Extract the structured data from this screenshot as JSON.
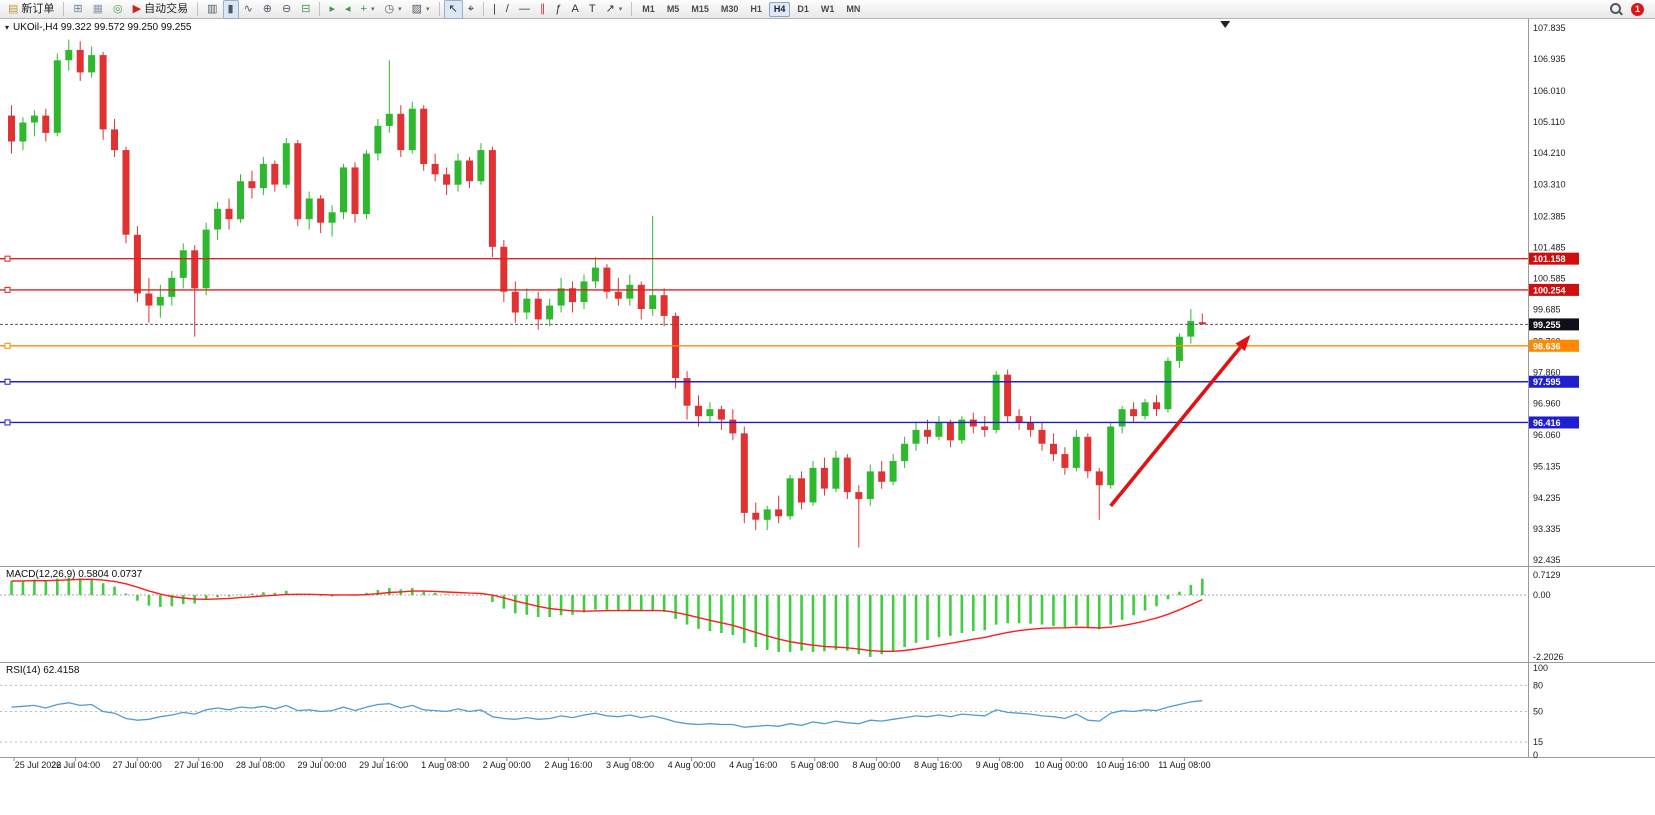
{
  "toolbar": {
    "items": [
      {
        "type": "button",
        "name": "new-order-button",
        "icon": "new-order-icon",
        "glyph": "▤",
        "glyph_color": "#b99a3c",
        "label": "新订单"
      },
      {
        "type": "sep"
      },
      {
        "type": "button",
        "name": "new-chart-button",
        "icon": "new-chart-icon",
        "glyph": "⊞",
        "glyph_color": "#6e7f95"
      },
      {
        "type": "button",
        "name": "profiles-button",
        "icon": "profiles-icon",
        "glyph": "▦",
        "glyph_color": "#8f9bad"
      },
      {
        "type": "button",
        "name": "community-button",
        "icon": "community-icon",
        "glyph": "◎",
        "glyph_color": "#3f9d4a"
      },
      {
        "type": "button",
        "name": "autotrading-button",
        "icon": "autotrading-icon",
        "glyph": "▶",
        "glyph_color": "#cc2222",
        "label": "自动交易"
      },
      {
        "type": "sep"
      },
      {
        "type": "button",
        "name": "bar-chart-button",
        "icon": "bar-chart-icon",
        "glyph": "▥",
        "glyph_color": "#505a66"
      },
      {
        "type": "button",
        "name": "candlestick-button",
        "icon": "candlestick-icon",
        "glyph": "▮",
        "glyph_color": "#505a66",
        "pressed": true
      },
      {
        "type": "button",
        "name": "line-chart-button",
        "icon": "line-chart-icon",
        "glyph": "∿",
        "glyph_color": "#505a66"
      },
      {
        "type": "button",
        "name": "zoom-in-button",
        "icon": "zoom-in-icon",
        "glyph": "⊕",
        "glyph_color": "#505a66"
      },
      {
        "type": "button",
        "name": "zoom-out-button",
        "icon": "zoom-out-icon",
        "glyph": "⊖",
        "glyph_color": "#505a66"
      },
      {
        "type": "button",
        "name": "tile-windows-button",
        "icon": "tile-windows-icon",
        "glyph": "⊟",
        "glyph_color": "#3f9d4a"
      },
      {
        "type": "sep"
      },
      {
        "type": "button",
        "name": "auto-scroll-button",
        "icon": "auto-scroll-icon",
        "glyph": "▸",
        "glyph_color": "#3f9d4a"
      },
      {
        "type": "button",
        "name": "chart-shift-button",
        "icon": "chart-shift-icon",
        "glyph": "◂",
        "glyph_color": "#3f9d4a"
      },
      {
        "type": "button",
        "name": "add-indicator-button",
        "icon": "add-indicator-icon",
        "glyph": "+",
        "glyph_color": "#2c9440",
        "caret": true
      },
      {
        "type": "button",
        "name": "periods-button",
        "icon": "clock-icon",
        "glyph": "◷",
        "glyph_color": "#505a66",
        "caret": true
      },
      {
        "type": "button",
        "name": "templates-button",
        "icon": "template-icon",
        "glyph": "▨",
        "glyph_color": "#505a66",
        "caret": true
      },
      {
        "type": "sep"
      },
      {
        "type": "button",
        "name": "cursor-button",
        "icon": "cursor-icon",
        "glyph": "↖",
        "glyph_color": "#2a3340",
        "pressed": true
      },
      {
        "type": "button",
        "name": "crosshair-button",
        "icon": "crosshair-icon",
        "glyph": "⌖",
        "glyph_color": "#2a3340"
      },
      {
        "type": "sep"
      },
      {
        "type": "button",
        "name": "vertical-line-tool",
        "icon": "vertical-line-icon",
        "glyph": "|",
        "glyph_color": "#2a3340"
      },
      {
        "type": "button",
        "name": "trendline-tool",
        "icon": "trendline-icon",
        "glyph": "/",
        "glyph_color": "#2a3340"
      },
      {
        "type": "button",
        "name": "horizontal-line-tool",
        "icon": "horizontal-line-icon",
        "glyph": "—",
        "glyph_color": "#2a3340"
      },
      {
        "type": "button",
        "name": "channel-tool",
        "icon": "channel-icon",
        "glyph": "∥",
        "glyph_color": "#b34040"
      },
      {
        "type": "button",
        "name": "fibonacci-tool",
        "icon": "fibonacci-icon",
        "glyph": "ƒ",
        "glyph_color": "#2a3340"
      },
      {
        "type": "button",
        "name": "text-tool",
        "icon": "text-icon",
        "glyph": "A",
        "glyph_color": "#2a3340"
      },
      {
        "type": "button",
        "name": "label-tool",
        "icon": "label-icon",
        "glyph": "T",
        "glyph_color": "#2a3340"
      },
      {
        "type": "button",
        "name": "arrows-tool",
        "icon": "arrows-icon",
        "glyph": "↗",
        "glyph_color": "#2a3340",
        "caret": true
      },
      {
        "type": "sep"
      }
    ],
    "timeframes": [
      "M1",
      "M5",
      "M15",
      "M30",
      "H1",
      "H4",
      "D1",
      "W1",
      "MN"
    ],
    "active_timeframe": "H4",
    "notification_badge": "1"
  },
  "colors": {
    "up": "#2eb82e",
    "down": "#e03232",
    "macd_hist": "#3ecf3e",
    "macd_signal": "#ff1e1e",
    "rsi_line": "#4f9bd5",
    "separator": "#9a9a9a",
    "background": "#ffffff"
  },
  "chart_data": [
    {
      "type": "candlestick",
      "title": "UKOil-,H4",
      "header": "UKOil-,H4  99.322 99.572 99.250 99.255",
      "ohlc_display": {
        "open": "99.322",
        "high": "99.572",
        "low": "99.250",
        "close": "99.255"
      },
      "y_ticks": [
        "107.835",
        "106.935",
        "106.010",
        "105.110",
        "104.210",
        "103.310",
        "102.385",
        "101.485",
        "100.585",
        "99.685",
        "98.760",
        "97.860",
        "96.960",
        "96.060",
        "95.135",
        "94.235",
        "93.335",
        "92.435"
      ],
      "x_ticks": [
        "25 Jul 2022",
        "26 Jul 04:00",
        "27 Jul 00:00",
        "27 Jul 16:00",
        "28 Jul 08:00",
        "29 Jul 00:00",
        "29 Jul 16:00",
        "1 Aug 08:00",
        "2 Aug 00:00",
        "2 Aug 16:00",
        "3 Aug 08:00",
        "4 Aug 00:00",
        "4 Aug 16:00",
        "5 Aug 08:00",
        "8 Aug 00:00",
        "8 Aug 16:00",
        "9 Aug 08:00",
        "10 Aug 00:00",
        "10 Aug 16:00",
        "11 Aug 08:00"
      ],
      "ohlc": [
        [
          105.3,
          105.6,
          104.2,
          104.55
        ],
        [
          104.55,
          105.25,
          104.3,
          105.1
        ],
        [
          105.1,
          105.45,
          104.7,
          105.3
        ],
        [
          105.3,
          105.5,
          104.55,
          104.8
        ],
        [
          104.8,
          107.1,
          104.7,
          106.9
        ],
        [
          106.9,
          107.5,
          106.6,
          107.2
        ],
        [
          107.2,
          107.45,
          106.3,
          106.55
        ],
        [
          106.55,
          107.3,
          106.4,
          107.05
        ],
        [
          107.05,
          107.15,
          104.6,
          104.9
        ],
        [
          104.9,
          105.2,
          104.1,
          104.3
        ],
        [
          104.3,
          104.4,
          101.6,
          101.85
        ],
        [
          101.85,
          102.1,
          99.9,
          100.15
        ],
        [
          100.15,
          100.6,
          99.3,
          99.8
        ],
        [
          99.8,
          100.4,
          99.45,
          100.05
        ],
        [
          100.05,
          100.8,
          99.8,
          100.6
        ],
        [
          100.6,
          101.6,
          100.3,
          101.4
        ],
        [
          101.4,
          101.55,
          98.9,
          100.3
        ],
        [
          100.3,
          102.2,
          100.1,
          102.0
        ],
        [
          102.0,
          102.8,
          101.7,
          102.6
        ],
        [
          102.6,
          102.9,
          102.0,
          102.3
        ],
        [
          102.3,
          103.6,
          102.2,
          103.4
        ],
        [
          103.4,
          103.7,
          102.9,
          103.2
        ],
        [
          103.2,
          104.1,
          103.0,
          103.9
        ],
        [
          103.9,
          104.0,
          103.1,
          103.3
        ],
        [
          103.3,
          104.65,
          103.2,
          104.5
        ],
        [
          104.5,
          104.6,
          102.1,
          102.3
        ],
        [
          102.3,
          103.1,
          102.0,
          102.9
        ],
        [
          102.9,
          103.0,
          101.9,
          102.2
        ],
        [
          102.2,
          102.7,
          101.8,
          102.5
        ],
        [
          102.5,
          103.9,
          102.3,
          103.8
        ],
        [
          103.8,
          103.95,
          102.2,
          102.45
        ],
        [
          102.45,
          104.3,
          102.3,
          104.2
        ],
        [
          104.2,
          105.2,
          104.0,
          105.0
        ],
        [
          105.0,
          106.9,
          104.8,
          105.35
        ],
        [
          105.35,
          105.6,
          104.1,
          104.3
        ],
        [
          104.3,
          105.7,
          104.2,
          105.5
        ],
        [
          105.5,
          105.6,
          103.7,
          103.9
        ],
        [
          103.9,
          104.2,
          103.4,
          103.6
        ],
        [
          103.6,
          103.8,
          103.0,
          103.3
        ],
        [
          103.3,
          104.2,
          103.1,
          104.0
        ],
        [
          104.0,
          104.1,
          103.2,
          103.4
        ],
        [
          103.4,
          104.5,
          103.3,
          104.3
        ],
        [
          104.3,
          104.4,
          101.2,
          101.5
        ],
        [
          101.5,
          101.7,
          99.9,
          100.2
        ],
        [
          100.2,
          100.5,
          99.3,
          99.6
        ],
        [
          99.6,
          100.3,
          99.4,
          100.0
        ],
        [
          100.0,
          100.2,
          99.1,
          99.4
        ],
        [
          99.4,
          100.0,
          99.2,
          99.8
        ],
        [
          99.8,
          100.6,
          99.6,
          100.3
        ],
        [
          100.3,
          100.5,
          99.6,
          99.9
        ],
        [
          99.9,
          100.7,
          99.7,
          100.5
        ],
        [
          100.5,
          101.2,
          100.3,
          100.9
        ],
        [
          100.9,
          101.0,
          100.0,
          100.2
        ],
        [
          100.2,
          100.6,
          99.8,
          100.0
        ],
        [
          100.0,
          100.7,
          99.8,
          100.4
        ],
        [
          100.4,
          100.5,
          99.4,
          99.7
        ],
        [
          99.7,
          102.4,
          99.5,
          100.1
        ],
        [
          100.1,
          100.3,
          99.2,
          99.5
        ],
        [
          99.5,
          99.6,
          97.4,
          97.7
        ],
        [
          97.7,
          97.9,
          96.5,
          96.9
        ],
        [
          96.9,
          97.2,
          96.3,
          96.6
        ],
        [
          96.6,
          97.0,
          96.4,
          96.8
        ],
        [
          96.8,
          96.9,
          96.2,
          96.5
        ],
        [
          96.5,
          96.8,
          95.9,
          96.1
        ],
        [
          96.1,
          96.3,
          93.5,
          93.8
        ],
        [
          93.8,
          94.1,
          93.3,
          93.6
        ],
        [
          93.6,
          94.0,
          93.3,
          93.9
        ],
        [
          93.9,
          94.3,
          93.5,
          93.7
        ],
        [
          93.7,
          94.9,
          93.6,
          94.8
        ],
        [
          94.8,
          95.0,
          93.9,
          94.1
        ],
        [
          94.1,
          95.3,
          94.0,
          95.1
        ],
        [
          95.1,
          95.4,
          94.3,
          94.5
        ],
        [
          94.5,
          95.6,
          94.4,
          95.4
        ],
        [
          95.4,
          95.5,
          94.2,
          94.4
        ],
        [
          94.4,
          94.6,
          92.8,
          94.2
        ],
        [
          94.2,
          95.2,
          94.0,
          95.0
        ],
        [
          95.0,
          95.3,
          94.5,
          94.7
        ],
        [
          94.7,
          95.5,
          94.6,
          95.3
        ],
        [
          95.3,
          96.0,
          95.1,
          95.8
        ],
        [
          95.8,
          96.4,
          95.6,
          96.2
        ],
        [
          96.2,
          96.5,
          95.8,
          96.0
        ],
        [
          96.0,
          96.6,
          95.9,
          96.4
        ],
        [
          96.4,
          96.5,
          95.7,
          95.9
        ],
        [
          95.9,
          96.6,
          95.8,
          96.5
        ],
        [
          96.5,
          96.7,
          96.1,
          96.3
        ],
        [
          96.3,
          96.6,
          96.0,
          96.2
        ],
        [
          96.2,
          97.9,
          96.1,
          97.8
        ],
        [
          97.8,
          97.95,
          96.4,
          96.6
        ],
        [
          96.6,
          96.8,
          96.2,
          96.4
        ],
        [
          96.4,
          96.6,
          96.0,
          96.2
        ],
        [
          96.2,
          96.4,
          95.6,
          95.8
        ],
        [
          95.8,
          96.1,
          95.3,
          95.5
        ],
        [
          95.5,
          95.7,
          94.9,
          95.1
        ],
        [
          95.1,
          96.2,
          95.0,
          96.0
        ],
        [
          96.0,
          96.1,
          94.8,
          95.0
        ],
        [
          95.0,
          95.1,
          93.6,
          94.6
        ],
        [
          94.6,
          96.4,
          94.5,
          96.3
        ],
        [
          96.3,
          96.9,
          96.1,
          96.8
        ],
        [
          96.8,
          97.0,
          96.4,
          96.6
        ],
        [
          96.6,
          97.1,
          96.5,
          97.0
        ],
        [
          97.0,
          97.2,
          96.6,
          96.8
        ],
        [
          96.8,
          98.3,
          96.7,
          98.2
        ],
        [
          98.2,
          99.0,
          98.0,
          98.9
        ],
        [
          98.9,
          99.7,
          98.7,
          99.35
        ],
        [
          99.32,
          99.57,
          99.25,
          99.26
        ]
      ],
      "level_lines": [
        {
          "price": 101.158,
          "label": "101.158",
          "line_color": "#e02020",
          "badge_color": "#cf0e0e"
        },
        {
          "price": 100.254,
          "label": "100.254",
          "line_color": "#e02020",
          "badge_color": "#cf0e0e"
        },
        {
          "price": 98.636,
          "label": "98.636",
          "line_color": "#ff8a00",
          "badge_color": "#ff8a00"
        },
        {
          "price": 97.595,
          "label": "97.595",
          "line_color": "#1f1fd0",
          "badge_color": "#1f1fd0"
        },
        {
          "price": 96.416,
          "label": "96.416",
          "line_color": "#1f1fd0",
          "badge_color": "#1f1fd0"
        }
      ],
      "current_price": {
        "value": 99.255,
        "label": "99.255",
        "badge_color": "#10101c",
        "line_color": "#555555"
      },
      "arrow": {
        "from_index": 96,
        "from_price": 94.0,
        "to_index": 108.2,
        "to_price": 98.95,
        "color": "#e01212"
      },
      "end_marker_index": 106
    },
    {
      "type": "bar",
      "name": "MACD(12,26,9)",
      "header": "MACD(12,26,9) 0.5804 0.0737",
      "main_value": "0.5804",
      "signal_value": "0.0737",
      "signal_period": 9,
      "y_ticks": [
        "0.7129",
        "0.00",
        "-2.2026"
      ],
      "values": [
        0.5,
        0.52,
        0.55,
        0.5,
        0.58,
        0.62,
        0.6,
        0.58,
        0.42,
        0.3,
        0.05,
        -0.2,
        -0.38,
        -0.42,
        -0.4,
        -0.32,
        -0.3,
        -0.18,
        -0.08,
        -0.05,
        0.02,
        0.05,
        0.1,
        0.08,
        0.15,
        0.05,
        0.02,
        -0.03,
        -0.05,
        0.02,
        -0.02,
        0.08,
        0.18,
        0.25,
        0.2,
        0.25,
        0.15,
        0.08,
        0.02,
        0.02,
        -0.02,
        0.02,
        -0.25,
        -0.48,
        -0.65,
        -0.7,
        -0.78,
        -0.78,
        -0.72,
        -0.7,
        -0.62,
        -0.52,
        -0.52,
        -0.55,
        -0.52,
        -0.58,
        -0.52,
        -0.6,
        -0.85,
        -1.05,
        -1.2,
        -1.28,
        -1.35,
        -1.42,
        -1.7,
        -1.85,
        -1.95,
        -2.02,
        -2.02,
        -1.98,
        -2.02,
        -2.0,
        -1.95,
        -1.98,
        -2.1,
        -2.2,
        -2.1,
        -2.0,
        -1.85,
        -1.7,
        -1.6,
        -1.5,
        -1.45,
        -1.35,
        -1.28,
        -1.25,
        -1.05,
        -1.0,
        -1.0,
        -1.02,
        -1.05,
        -1.1,
        -1.15,
        -1.08,
        -1.18,
        -1.22,
        -1.05,
        -0.88,
        -0.72,
        -0.55,
        -0.4,
        -0.15,
        0.12,
        0.36,
        0.58
      ]
    },
    {
      "type": "line",
      "name": "RSI(14)",
      "header": "RSI(14) 62.4158",
      "display_value": "62.4158",
      "ylim": [
        0,
        100
      ],
      "y_ticks": [
        "100",
        "80",
        "50",
        "15",
        "0"
      ],
      "levels": [
        80,
        50,
        15
      ],
      "values": [
        55,
        56,
        57,
        54,
        58,
        60,
        57,
        58,
        50,
        48,
        42,
        40,
        41,
        44,
        46,
        49,
        47,
        52,
        54,
        52,
        55,
        54,
        56,
        53,
        57,
        51,
        52,
        50,
        51,
        55,
        51,
        55,
        58,
        59,
        54,
        57,
        52,
        51,
        50,
        53,
        50,
        52,
        44,
        42,
        41,
        43,
        41,
        42,
        45,
        43,
        46,
        48,
        45,
        44,
        46,
        43,
        45,
        42,
        38,
        36,
        35,
        36,
        35,
        35,
        32,
        33,
        34,
        33,
        36,
        34,
        38,
        36,
        39,
        37,
        36,
        40,
        39,
        41,
        43,
        45,
        44,
        46,
        44,
        47,
        46,
        45,
        52,
        49,
        48,
        47,
        45,
        44,
        42,
        47,
        40,
        39,
        48,
        51,
        50,
        52,
        51,
        55,
        58,
        61,
        62.4
      ]
    }
  ]
}
